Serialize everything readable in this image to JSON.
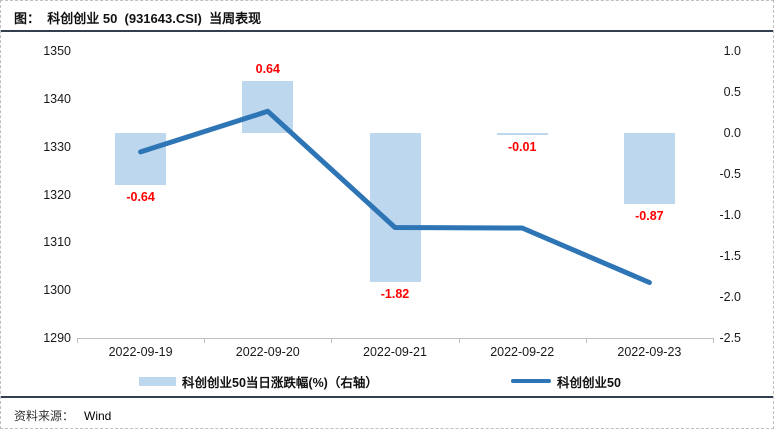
{
  "header": {
    "title": "图：  科创创业 50  (931643.CSI)  当周表现"
  },
  "footer": {
    "source_label": "资料来源：",
    "source_value": "Wind"
  },
  "legend": [
    {
      "label": "科创创业50当日涨跌幅(%)（右轴）"
    },
    {
      "label": "科创创业50"
    }
  ],
  "chart_data": {
    "type": "combo",
    "title": "科创创业 50 (931643.CSI) 当周表现",
    "categories": [
      "2022-09-19",
      "2022-09-20",
      "2022-09-21",
      "2022-09-22",
      "2022-09-23"
    ],
    "series": [
      {
        "name": "科创创业50当日涨跌幅(%)（右轴）",
        "type": "bar",
        "axis": "right",
        "values": [
          -0.64,
          0.64,
          -1.82,
          -0.01,
          -0.87
        ],
        "labels": [
          "-0.64",
          "0.64",
          "-1.82",
          "-0.01",
          "-0.87"
        ],
        "color": "#bdd7ee"
      },
      {
        "name": "科创创业50",
        "type": "line",
        "axis": "left",
        "values": [
          1328.9,
          1337.4,
          1313.1,
          1313.0,
          1301.6
        ],
        "color": "#2e75b6"
      }
    ],
    "left_axis": {
      "min": 1290,
      "max": 1350,
      "ticks": [
        "1350",
        "1340",
        "1330",
        "1320",
        "1310",
        "1300",
        "1290"
      ]
    },
    "right_axis": {
      "min": -2.5,
      "max": 1.0,
      "ticks": [
        "1.0",
        "0.5",
        "0.0",
        "-0.5",
        "-1.0",
        "-1.5",
        "-2.0",
        "-2.5"
      ]
    },
    "label_color": "#ff0000",
    "grid": false,
    "legend_position": "bottom"
  }
}
